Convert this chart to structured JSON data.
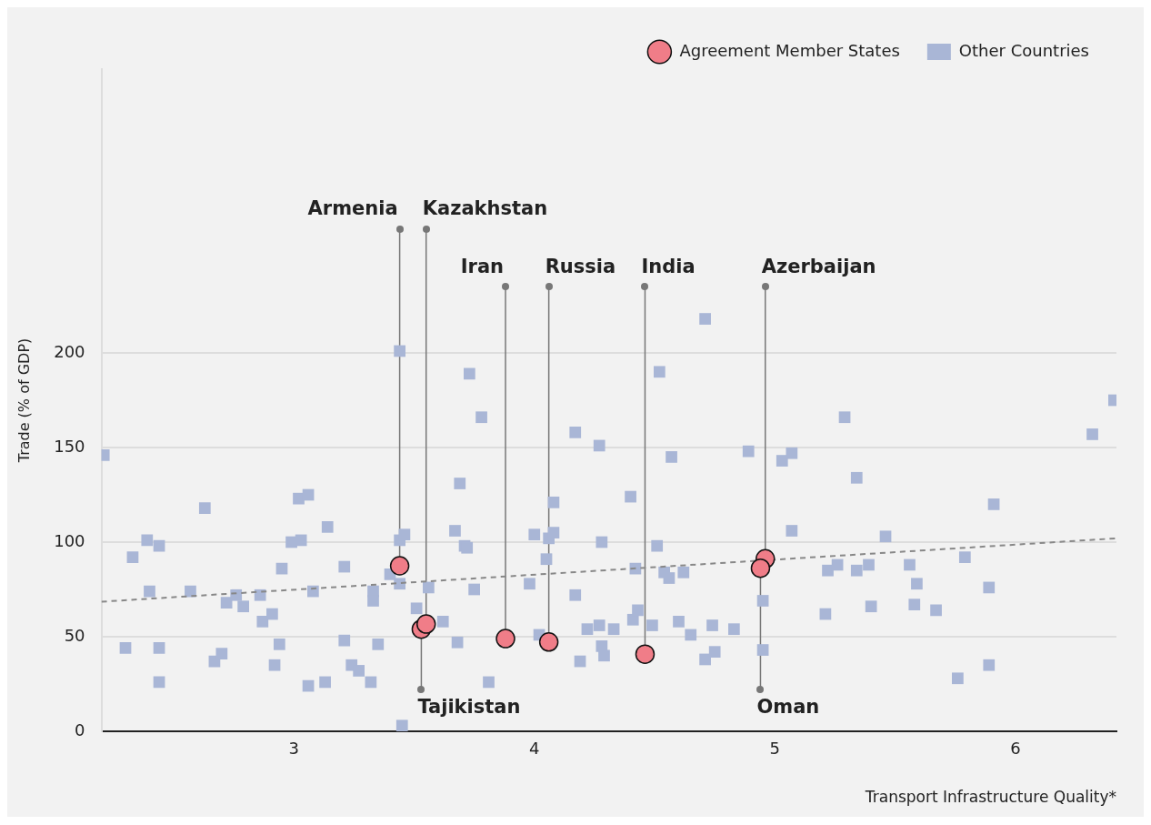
{
  "chart_data": {
    "type": "scatter",
    "xlabel": "Transport Infrastructure Quality*",
    "ylabel": "Trade (% of GDP)",
    "xlim": [
      2.2,
      6.42
    ],
    "xticks": [
      3,
      4,
      5,
      6
    ],
    "ylim": [
      0,
      350
    ],
    "yticks": [
      0,
      50,
      100,
      150,
      200
    ],
    "grid": "y",
    "legend": "top right",
    "series": [
      {
        "name": "Other Countries",
        "marker": "square",
        "color": "#a9b6d6",
        "x": [
          2.21,
          2.3,
          2.33,
          2.39,
          2.4,
          2.44,
          2.44,
          2.44,
          2.57,
          2.63,
          2.67,
          2.7,
          2.72,
          2.76,
          2.79,
          2.86,
          2.87,
          2.91,
          2.92,
          2.94,
          2.95,
          2.99,
          3.02,
          3.03,
          3.06,
          3.06,
          3.08,
          3.13,
          3.14,
          3.21,
          3.21,
          3.24,
          3.27,
          3.32,
          3.33,
          3.33,
          3.35,
          3.4,
          3.44,
          3.44,
          3.44,
          3.46,
          3.45,
          3.51,
          3.56,
          3.62,
          3.67,
          3.69,
          3.68,
          3.71,
          3.72,
          3.73,
          3.75,
          3.78,
          3.81,
          3.98,
          4.0,
          4.02,
          4.05,
          4.06,
          4.08,
          4.08,
          4.17,
          4.17,
          4.19,
          4.22,
          4.27,
          4.27,
          4.28,
          4.28,
          4.29,
          4.33,
          4.4,
          4.41,
          4.42,
          4.43,
          4.49,
          4.51,
          4.52,
          4.54,
          4.56,
          4.57,
          4.6,
          4.62,
          4.65,
          4.71,
          4.71,
          4.74,
          4.75,
          4.83,
          4.89,
          4.95,
          4.95,
          5.03,
          5.07,
          5.07,
          5.21,
          5.22,
          5.26,
          5.29,
          5.34,
          5.34,
          5.39,
          5.4,
          5.46,
          5.56,
          5.59,
          5.58,
          5.67,
          5.76,
          5.79,
          5.89,
          5.89,
          5.91,
          6.32,
          6.41
        ],
        "values": [
          146,
          44,
          92,
          101,
          74,
          44,
          98,
          26,
          74,
          118,
          37,
          41,
          68,
          72,
          66,
          72,
          58,
          62,
          35,
          46,
          86,
          100,
          123,
          101,
          125,
          24,
          74,
          26,
          108,
          87,
          48,
          35,
          32,
          26,
          74,
          69,
          46,
          83,
          201,
          101,
          78,
          104,
          3,
          65,
          76,
          58,
          106,
          131,
          47,
          98,
          97,
          189,
          75,
          166,
          26,
          78,
          104,
          51,
          91,
          102,
          121,
          105,
          72,
          158,
          37,
          54,
          56,
          151,
          100,
          45,
          40,
          54,
          124,
          59,
          86,
          64,
          56,
          98,
          190,
          84,
          81,
          145,
          58,
          84,
          51,
          218,
          38,
          56,
          42,
          54,
          148,
          69,
          43,
          143,
          147,
          106,
          62,
          85,
          88,
          166,
          85,
          134,
          88,
          66,
          103,
          88,
          78,
          67,
          64,
          28,
          92,
          35,
          76,
          120,
          157,
          175
        ]
      },
      {
        "name": "Agreement Member States",
        "marker": "circle",
        "color": "#f07d88",
        "x": [
          3.44,
          3.53,
          3.55,
          3.88,
          4.06,
          4.46,
          4.96,
          4.94
        ],
        "values": [
          87.5,
          54,
          56.7,
          49,
          47.2,
          40.8,
          91.2,
          86.2
        ]
      },
      {
        "type": "line",
        "line_style": "dashed",
        "color": "#888888",
        "x": [
          2.2,
          6.42
        ],
        "values": [
          68.5,
          102
        ]
      }
    ],
    "annotations": [
      {
        "text": "Armenia",
        "x": 3.44,
        "y": 87.5
      },
      {
        "text": "Kazakhstan",
        "x": 3.55,
        "y": 56.7
      },
      {
        "text": "Tajikistan",
        "x": 3.53,
        "y": 54
      },
      {
        "text": "Iran",
        "x": 3.88,
        "y": 49
      },
      {
        "text": "Russia",
        "x": 4.06,
        "y": 47.2
      },
      {
        "text": "India",
        "x": 4.46,
        "y": 40.8
      },
      {
        "text": "Azerbaijan",
        "x": 4.96,
        "y": 91.2
      },
      {
        "text": "Oman",
        "x": 4.94,
        "y": 86.2
      }
    ]
  }
}
